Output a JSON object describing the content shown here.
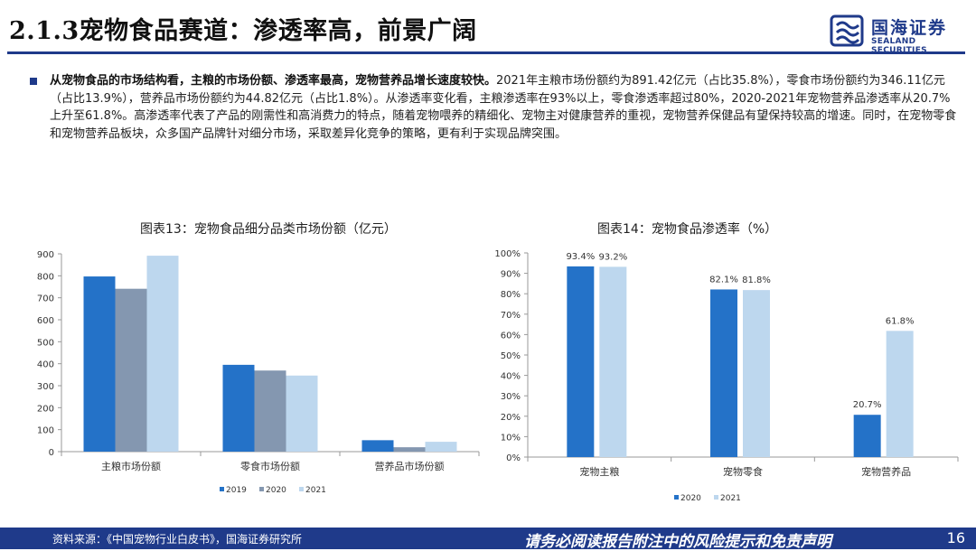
{
  "header": {
    "title": "2.1.3宠物食品赛道：渗透率高，前景广阔",
    "logo_cn": "国海证券",
    "logo_en": "SEALAND SECURITIES"
  },
  "summary": {
    "bold": "从宠物食品的市场结构看，主粮的市场份额、渗透率最高，宠物营养品增长速度较快。",
    "text": "2021年主粮市场份额约为891.42亿元（占比35.8%），零食市场份额约为346.11亿元（占比13.9%），营养品市场份额约为44.82亿元（占比1.8%）。从渗透率变化看，主粮渗透率在93%以上，零食渗透率超过80%，2020-2021年宠物营养品渗透率从20.7%上升至61.8%。高渗透率代表了产品的刚需性和高消费力的特点，随着宠物喂养的精细化、宠物主对健康营养的重视，宠物营养保健品有望保持较高的增速。同时，在宠物零食和宠物营养品板块，众多国产品牌针对细分市场，采取差异化竞争的策略，更有利于实现品牌突围。"
  },
  "chart_data": [
    {
      "type": "bar",
      "title": "图表13：宠物食品细分品类市场份额（亿元）",
      "categories": [
        "主粮市场份额",
        "零食市场份额",
        "营养品市场份额"
      ],
      "series": [
        {
          "name": "2019",
          "color": "#2472c8",
          "values": [
            797,
            395,
            52
          ]
        },
        {
          "name": "2020",
          "color": "#8497b0",
          "values": [
            741,
            369,
            20
          ]
        },
        {
          "name": "2021",
          "color": "#bdd7ee",
          "values": [
            891.42,
            346.11,
            44.82
          ]
        }
      ],
      "ylim": [
        0,
        900
      ],
      "yticks": [
        "0",
        "100",
        "200",
        "300",
        "400",
        "500",
        "600",
        "700",
        "800",
        "900"
      ],
      "grid": false,
      "legend": "bottom"
    },
    {
      "type": "bar",
      "title": "图表14：宠物食品渗透率（%）",
      "categories": [
        "宠物主粮",
        "宠物零食",
        "宠物营养品"
      ],
      "series": [
        {
          "name": "2020",
          "color": "#2472c8",
          "values": [
            93.4,
            82.1,
            20.7
          ],
          "labels": [
            "93.4%",
            "82.1%",
            "20.7%"
          ]
        },
        {
          "name": "2021",
          "color": "#bdd7ee",
          "values": [
            93.2,
            81.8,
            61.8
          ],
          "labels": [
            "93.2%",
            "81.8%",
            "61.8%"
          ]
        }
      ],
      "ylim": [
        0,
        100
      ],
      "yticks": [
        "0%",
        "10%",
        "20%",
        "30%",
        "40%",
        "50%",
        "60%",
        "70%",
        "80%",
        "90%",
        "100%"
      ],
      "grid": false,
      "legend": "bottom"
    }
  ],
  "footer": {
    "source": "资料来源：《中国宠物行业白皮书》，国海证券研究所",
    "disclaimer": "请务必阅读报告附注中的风险提示和免责声明",
    "page": "16"
  }
}
